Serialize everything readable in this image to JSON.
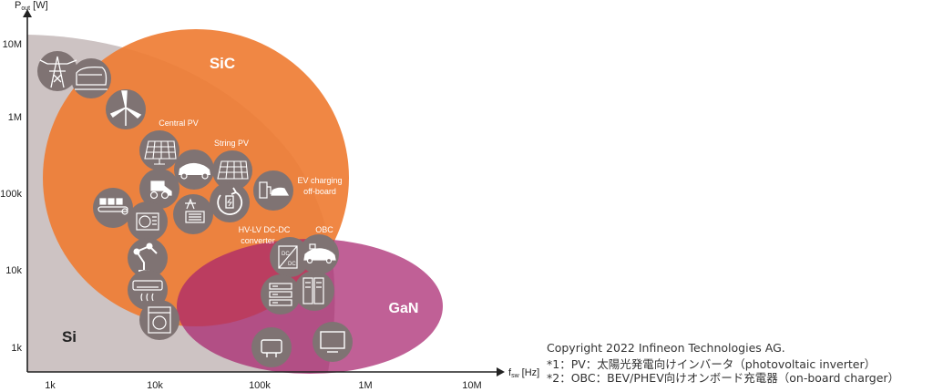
{
  "axes": {
    "y_label_main": "P",
    "y_label_sub": "out",
    "y_label_unit": " [W]",
    "x_label_main": "f",
    "x_label_sub": "sw",
    "x_label_unit": " [Hz]",
    "y_ticks": [
      "10M",
      "1M",
      "100k",
      "10k",
      "1k"
    ],
    "x_ticks": [
      "1k",
      "10k",
      "100k",
      "1M",
      "10M"
    ]
  },
  "regions": {
    "si": "Si",
    "sic": "SiC",
    "gan": "GaN"
  },
  "colors": {
    "si": "#cdc3c3",
    "sic": "#ef7d34",
    "gan": "#a8236e",
    "icon_circle": "#7f7373"
  },
  "labels": {
    "central_pv": "Central PV",
    "string_pv": "String PV",
    "ev_charging_1": "EV charging",
    "ev_charging_2": "off-board",
    "hvlv_1": "HV-LV DC-DC",
    "hvlv_2": "converter",
    "obc": "OBC"
  },
  "icons": [
    "power-tower-icon",
    "train-icon",
    "wind-turbine-icon",
    "solar-panel-icon",
    "electric-car-icon",
    "solar-panel-icon",
    "ev-charger-icon",
    "industrial-vehicle-icon",
    "battery-cycle-icon",
    "conveyor-icon",
    "heat-pump-icon",
    "grid-transformer-icon",
    "robot-arm-icon",
    "air-conditioner-icon",
    "washing-machine-icon",
    "dc-dc-converter-icon",
    "onboard-charger-icon",
    "server-rack-icon",
    "server-tower-icon",
    "wall-charger-icon",
    "monitor-icon"
  ],
  "notes": {
    "copyright": "Copyright 2022 Infineon Technologies AG.",
    "note1": "*1：PV：太陽光発電向けインバータ（photovoltaic inverter）",
    "note2": "*2：OBC：BEV/PHEV向けオンボード充電器（on-board charger）"
  }
}
